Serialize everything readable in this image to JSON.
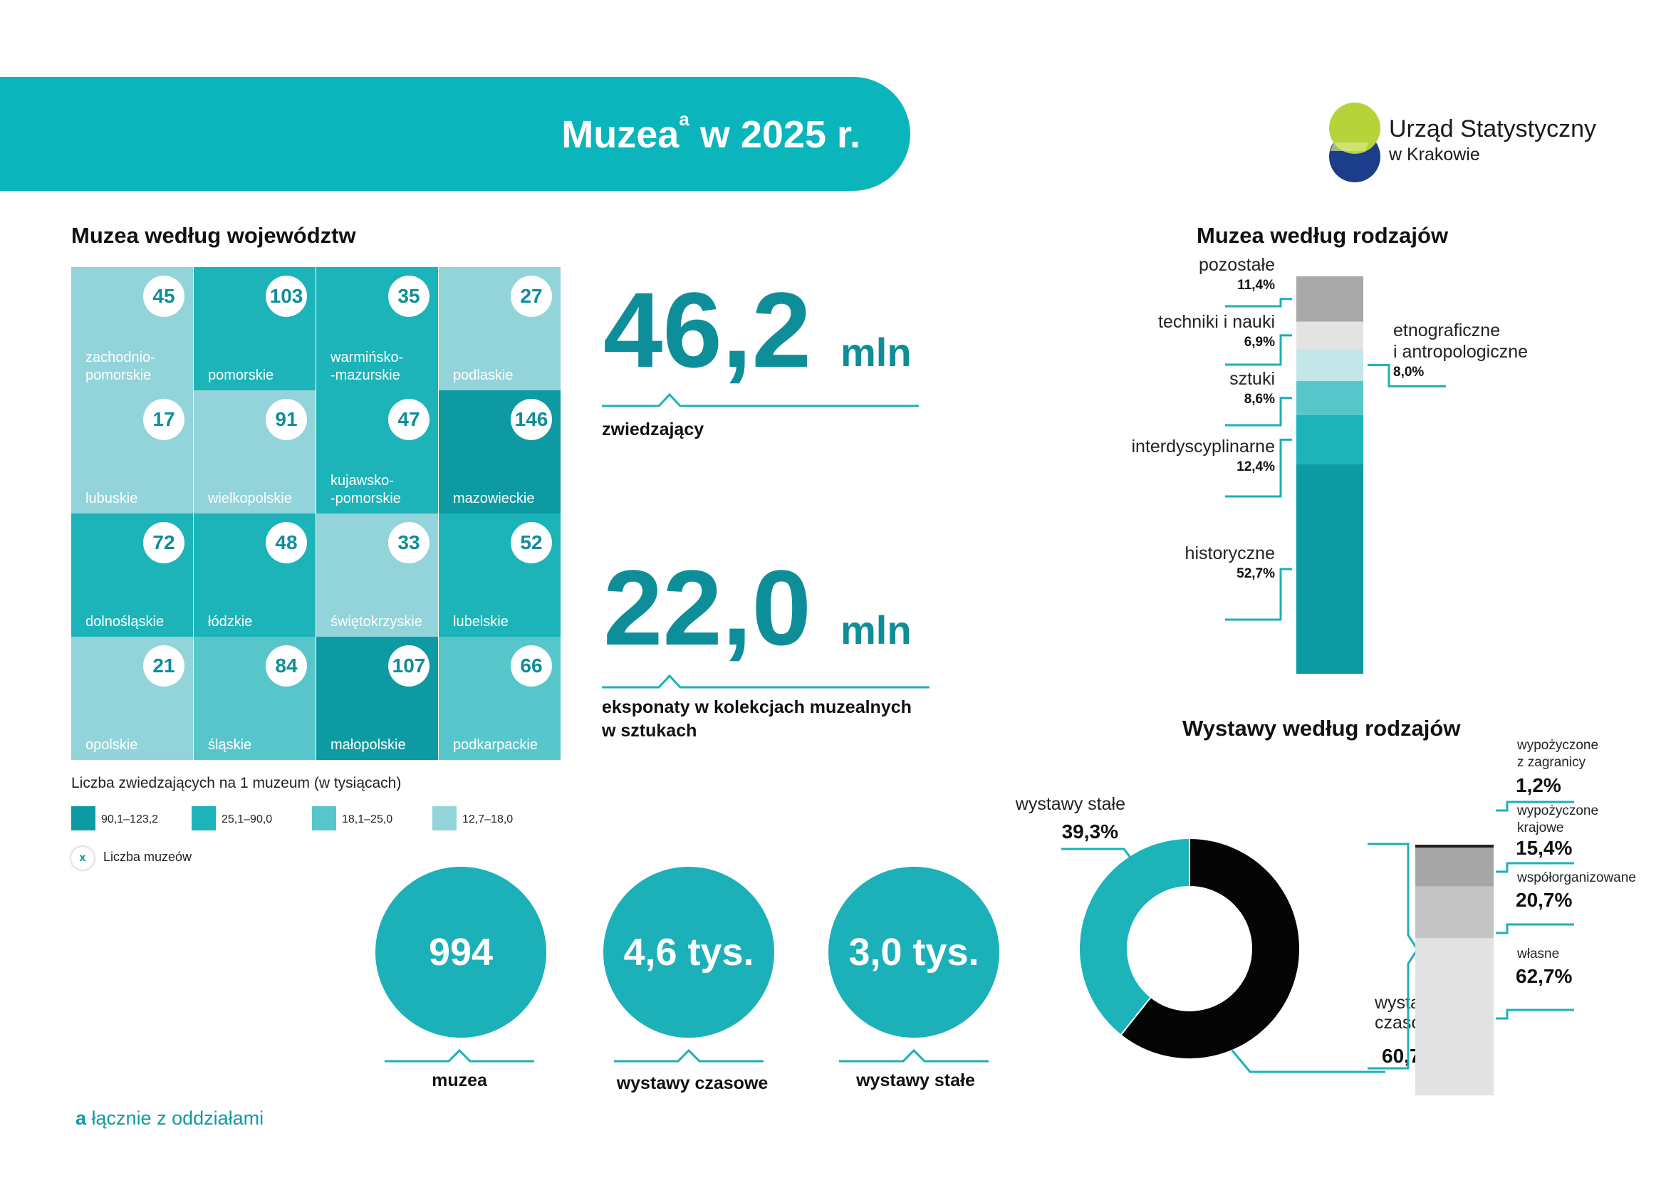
{
  "banner": {
    "title": "Muzea",
    "sup": "a",
    "title_rest": " w 2025 r."
  },
  "logo": {
    "line1": "Urząd Statystyczny",
    "line2": "w Krakowie"
  },
  "grid": {
    "title": "Muzea według województw",
    "cells": [
      {
        "name": "zachodnio-\npomorskie",
        "count": "45",
        "cls": 3
      },
      {
        "name": "pomorskie",
        "count": "103",
        "cls": 1
      },
      {
        "name": "warmińsko-\n-mazurskie",
        "count": "35",
        "cls": 1
      },
      {
        "name": "podlaskie",
        "count": "27",
        "cls": 3
      },
      {
        "name": "lubuskie",
        "count": "17",
        "cls": 3
      },
      {
        "name": "wielkopolskie",
        "count": "91",
        "cls": 3
      },
      {
        "name": "kujawsko-\n-pomorskie",
        "count": "47",
        "cls": 1
      },
      {
        "name": "mazowieckie",
        "count": "146",
        "cls": 0
      },
      {
        "name": "dolnośląskie",
        "count": "72",
        "cls": 1
      },
      {
        "name": "łódzkie",
        "count": "48",
        "cls": 1
      },
      {
        "name": "świętokrzyskie",
        "count": "33",
        "cls": 3
      },
      {
        "name": "lubelskie",
        "count": "52",
        "cls": 1
      },
      {
        "name": "opolskie",
        "count": "21",
        "cls": 3
      },
      {
        "name": "śląskie",
        "count": "84",
        "cls": 2
      },
      {
        "name": "małopolskie",
        "count": "107",
        "cls": 0
      },
      {
        "name": "podkarpackie",
        "count": "66",
        "cls": 2
      }
    ],
    "legend_title": "Liczba zwiedzających na 1 muzeum (w tysiącach)",
    "legend": [
      {
        "label": "90,1–123,2",
        "color": "#0e9aa2"
      },
      {
        "label": "25,1–90,0",
        "color": "#1cb3b9"
      },
      {
        "label": "18,1–25,0",
        "color": "#57c6cb"
      },
      {
        "label": "12,7–18,0",
        "color": "#92d4d9"
      }
    ],
    "count_legend_symbol": "x",
    "count_legend_label": "Liczba muzeów"
  },
  "stats": {
    "visitors": {
      "value": "46,2",
      "unit": "mln",
      "label": "zwiedzający"
    },
    "exhibits": {
      "value": "22,0",
      "unit": "mln",
      "label1": "eksponaty w kolekcjach muzealnych",
      "label2": "w sztukach"
    }
  },
  "circles": [
    {
      "value": "994",
      "label": "muzea"
    },
    {
      "value": "4,6 tys.",
      "label": "wystawy czasowe"
    },
    {
      "value": "3,0 tys.",
      "label": "wystawy stałe"
    }
  ],
  "footnote": {
    "mark": "a",
    "text": " łącznie z oddziałami"
  },
  "chart_data": [
    {
      "type": "bar",
      "title": "Muzea według rodzajów",
      "stacked": true,
      "categories": [
        "historyczne",
        "interdyscyplinarne",
        "sztuki",
        "etnograficzne i antropologiczne",
        "techniki i nauki",
        "pozostałe"
      ],
      "values": [
        52.7,
        12.4,
        8.6,
        8.0,
        6.9,
        11.4
      ],
      "labels": [
        "52,7%",
        "12,4%",
        "8,6%",
        "8,0%",
        "6,9%",
        "11,4%"
      ],
      "colors": [
        "#0e9aa2",
        "#1cb3b9",
        "#57c6cb",
        "#c3e6e9",
        "#e3e3e3",
        "#a9a9aa"
      ],
      "unit": "%"
    },
    {
      "type": "pie",
      "title": "Wystawy według rodzajów",
      "donut": true,
      "categories": [
        "wystawy czasowe",
        "wystawy stałe"
      ],
      "values": [
        60.7,
        39.3
      ],
      "labels": [
        "60,7%",
        "39,3%"
      ],
      "label_lines": [
        [
          "wystawy",
          "czasowe"
        ],
        [
          "wystawy stałe"
        ]
      ],
      "colors": [
        "#050505",
        "#1cb3b9"
      ],
      "unit": "%"
    },
    {
      "type": "bar",
      "stacked": true,
      "categories": [
        "własne",
        "współorganizowane",
        "wypożyczone krajowe",
        "wypożyczone z zagranicy"
      ],
      "values": [
        62.7,
        20.7,
        15.4,
        1.2
      ],
      "labels": [
        "62,7%",
        "20,7%",
        "15,4%",
        "1,2%"
      ],
      "label_lines": [
        [
          "własne"
        ],
        [
          "współorganizowane"
        ],
        [
          "wypożyczone",
          "krajowe"
        ],
        [
          "wypożyczone",
          "z zagranicy"
        ]
      ],
      "colors": [
        "#e2e2e2",
        "#c4c4c4",
        "#a6a6a6",
        "#222222"
      ],
      "unit": "%"
    }
  ]
}
